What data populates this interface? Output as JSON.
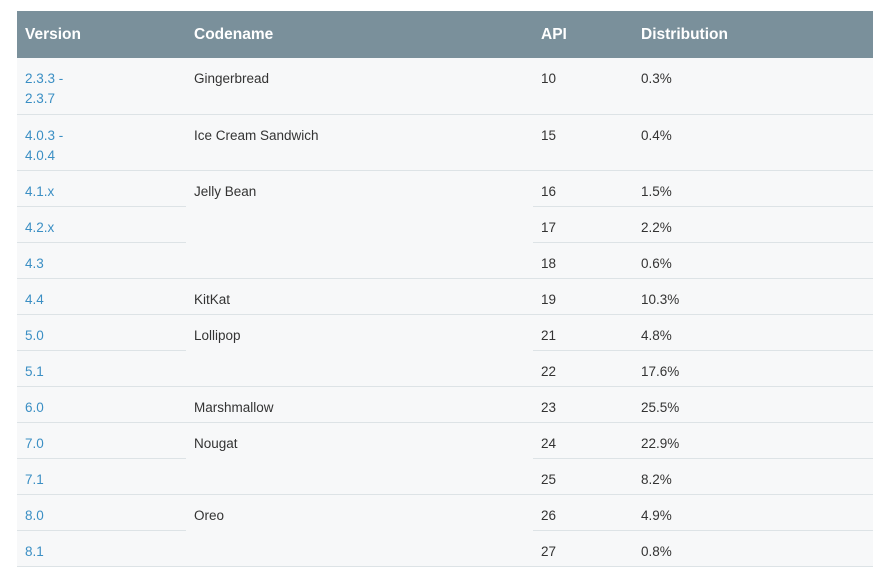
{
  "headers": {
    "version": "Version",
    "codename": "Codename",
    "api": "API",
    "distribution": "Distribution"
  },
  "rows": [
    {
      "version": "2.3.3 -\n2.3.7",
      "codename": "Gingerbread",
      "api": "10",
      "distribution": "0.3%"
    },
    {
      "version": "4.0.3 -\n4.0.4",
      "codename": "Ice Cream Sandwich",
      "api": "15",
      "distribution": "0.4%"
    },
    {
      "version": "4.1.x",
      "codename": "Jelly Bean",
      "api": "16",
      "distribution": "1.5%"
    },
    {
      "version": "4.2.x",
      "api": "17",
      "distribution": "2.2%"
    },
    {
      "version": "4.3",
      "api": "18",
      "distribution": "0.6%"
    },
    {
      "version": "4.4",
      "codename": "KitKat",
      "api": "19",
      "distribution": "10.3%"
    },
    {
      "version": "5.0",
      "codename": "Lollipop",
      "api": "21",
      "distribution": "4.8%"
    },
    {
      "version": "5.1",
      "api": "22",
      "distribution": "17.6%"
    },
    {
      "version": "6.0",
      "codename": "Marshmallow",
      "api": "23",
      "distribution": "25.5%"
    },
    {
      "version": "7.0",
      "codename": "Nougat",
      "api": "24",
      "distribution": "22.9%"
    },
    {
      "version": "7.1",
      "api": "25",
      "distribution": "8.2%"
    },
    {
      "version": "8.0",
      "codename": "Oreo",
      "api": "26",
      "distribution": "4.9%"
    },
    {
      "version": "8.1",
      "api": "27",
      "distribution": "0.8%"
    }
  ]
}
